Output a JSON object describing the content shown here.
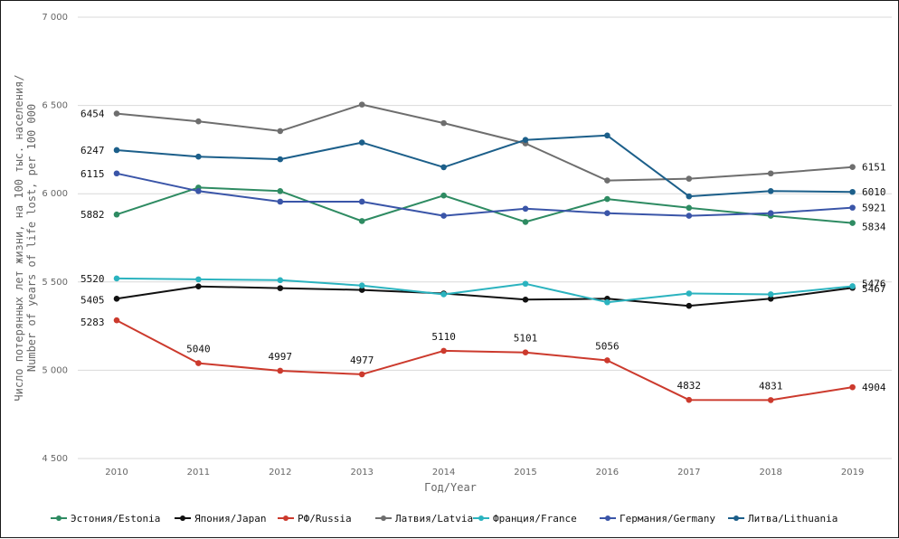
{
  "chart_data": {
    "type": "line",
    "title": "",
    "xlabel": "Год/Year",
    "ylabel_line1": "Число потерянных лет жизни, на 100 тыс. населения/",
    "ylabel_line2": "Number of years of life lost, per 100 000",
    "ylim": [
      4500,
      7000
    ],
    "yticks": [
      4500,
      5000,
      5500,
      6000,
      6500,
      7000
    ],
    "ytick_labels": [
      "4 500",
      "5 000",
      "5 500",
      "6 000",
      "6 500",
      "7 000"
    ],
    "categories": [
      "2010",
      "2011",
      "2012",
      "2013",
      "2014",
      "2015",
      "2016",
      "2017",
      "2018",
      "2019"
    ],
    "grid": "horizontal",
    "legend_position": "bottom",
    "series": [
      {
        "name": "Эстония/Estonia",
        "color": "#2e8b62",
        "values": [
          5882,
          6035,
          6015,
          5845,
          5990,
          5840,
          5970,
          5920,
          5875,
          5834
        ],
        "labels": {
          "0": "5882",
          "9": "5834"
        }
      },
      {
        "name": "Япония/Japan",
        "color": "#111111",
        "values": [
          5405,
          5475,
          5465,
          5455,
          5435,
          5400,
          5405,
          5365,
          5405,
          5467
        ],
        "labels": {
          "0": "5405",
          "9": "5467"
        }
      },
      {
        "name": "РФ/Russia",
        "color": "#cc3a2d",
        "values": [
          5283,
          5040,
          4997,
          4977,
          5110,
          5101,
          5056,
          4832,
          4831,
          4904
        ],
        "labels": {
          "0": "5283",
          "1": "5040",
          "2": "4997",
          "3": "4977",
          "4": "5110",
          "5": "5101",
          "6": "5056",
          "7": "4832",
          "8": "4831",
          "9": "4904"
        }
      },
      {
        "name": "Латвия/Latvia",
        "color": "#6e6e6e",
        "values": [
          6454,
          6410,
          6355,
          6505,
          6400,
          6285,
          6075,
          6085,
          6115,
          6151
        ],
        "labels": {
          "0": "6454",
          "9": "6151"
        }
      },
      {
        "name": "Франция/France",
        "color": "#2bb3bf",
        "values": [
          5520,
          5515,
          5510,
          5480,
          5430,
          5490,
          5385,
          5435,
          5430,
          5476
        ],
        "labels": {
          "0": "5520",
          "9": "5476"
        }
      },
      {
        "name": "Германия/Germany",
        "color": "#3a55a8",
        "values": [
          6115,
          6015,
          5955,
          5955,
          5875,
          5915,
          5890,
          5875,
          5890,
          5921
        ],
        "labels": {
          "0": "6115",
          "9": "5921"
        }
      },
      {
        "name": "Литва/Lithuania",
        "color": "#1c5f8a",
        "values": [
          6247,
          6210,
          6195,
          6290,
          6150,
          6305,
          6330,
          5985,
          6015,
          6010
        ],
        "labels": {
          "0": "6247",
          "9": "6010"
        }
      }
    ]
  }
}
